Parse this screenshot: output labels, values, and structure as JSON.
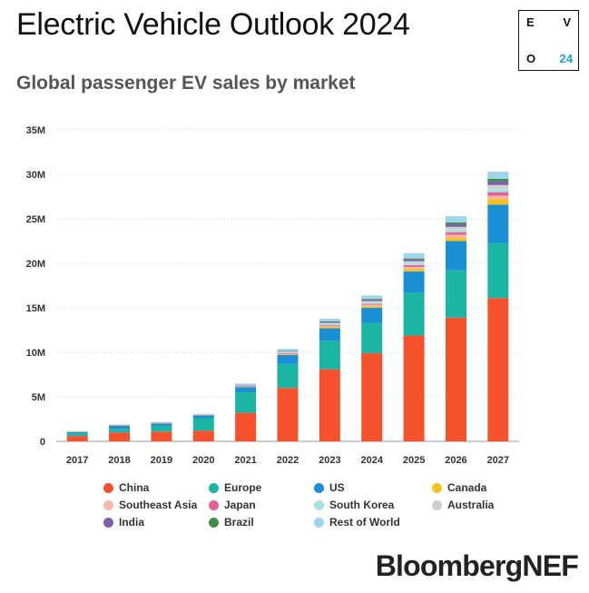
{
  "header": {
    "title": "Electric Vehicle Outlook 2024",
    "subtitle": "Global passenger EV sales by market"
  },
  "logo": {
    "e": "E",
    "v": "V",
    "o": "O",
    "year": "24"
  },
  "brand": "BloombergNEF",
  "chart_data": {
    "type": "bar",
    "stacked": true,
    "title": "Global passenger EV sales by market",
    "categories": [
      "2017",
      "2018",
      "2019",
      "2020",
      "2021",
      "2022",
      "2023",
      "2024",
      "2025",
      "2026",
      "2027"
    ],
    "ylim": [
      0,
      35
    ],
    "yticks": [
      0,
      5,
      10,
      15,
      20,
      25,
      30,
      35
    ],
    "ytick_labels": [
      "0",
      "5M",
      "10M",
      "15M",
      "20M",
      "25M",
      "30M",
      "35M"
    ],
    "unit": "million vehicles",
    "grid": true,
    "legend_position": "bottom",
    "series": [
      {
        "name": "China",
        "color": "#f4512c",
        "values": [
          0.6,
          1.0,
          1.1,
          1.2,
          3.2,
          6.0,
          8.1,
          9.9,
          11.9,
          13.9,
          16.1
        ]
      },
      {
        "name": "Europe",
        "color": "#1bb5a4",
        "values": [
          0.3,
          0.4,
          0.6,
          1.4,
          2.3,
          2.7,
          3.2,
          3.4,
          4.8,
          5.3,
          6.2
        ]
      },
      {
        "name": "US",
        "color": "#1b8fd6",
        "values": [
          0.15,
          0.35,
          0.3,
          0.3,
          0.6,
          1.0,
          1.4,
          1.7,
          2.4,
          3.3,
          4.3
        ]
      },
      {
        "name": "Canada",
        "color": "#f7c11e",
        "values": [
          0.02,
          0.04,
          0.05,
          0.05,
          0.07,
          0.1,
          0.15,
          0.2,
          0.3,
          0.4,
          0.6
        ]
      },
      {
        "name": "Southeast Asia",
        "color": "#f6b6a9",
        "values": [
          0.0,
          0.0,
          0.0,
          0.0,
          0.01,
          0.03,
          0.1,
          0.15,
          0.2,
          0.3,
          0.4
        ]
      },
      {
        "name": "Japan",
        "color": "#e8609a",
        "values": [
          0.05,
          0.05,
          0.04,
          0.03,
          0.04,
          0.1,
          0.1,
          0.1,
          0.2,
          0.3,
          0.4
        ]
      },
      {
        "name": "South Korea",
        "color": "#a8e3df",
        "values": [
          0.01,
          0.03,
          0.04,
          0.05,
          0.1,
          0.16,
          0.17,
          0.2,
          0.25,
          0.3,
          0.4
        ]
      },
      {
        "name": "Australia",
        "color": "#cfcfcf",
        "values": [
          0.0,
          0.0,
          0.0,
          0.01,
          0.02,
          0.04,
          0.1,
          0.12,
          0.2,
          0.3,
          0.4
        ]
      },
      {
        "name": "India",
        "color": "#7d5fae",
        "values": [
          0.0,
          0.0,
          0.0,
          0.0,
          0.01,
          0.05,
          0.1,
          0.15,
          0.2,
          0.3,
          0.4
        ]
      },
      {
        "name": "Brazil",
        "color": "#3d8f43",
        "values": [
          0.0,
          0.0,
          0.0,
          0.0,
          0.0,
          0.01,
          0.05,
          0.08,
          0.1,
          0.2,
          0.3
        ]
      },
      {
        "name": "Rest of World",
        "color": "#9ed4ee",
        "values": [
          0.02,
          0.03,
          0.05,
          0.06,
          0.15,
          0.2,
          0.3,
          0.4,
          0.6,
          0.7,
          0.8
        ]
      }
    ]
  }
}
